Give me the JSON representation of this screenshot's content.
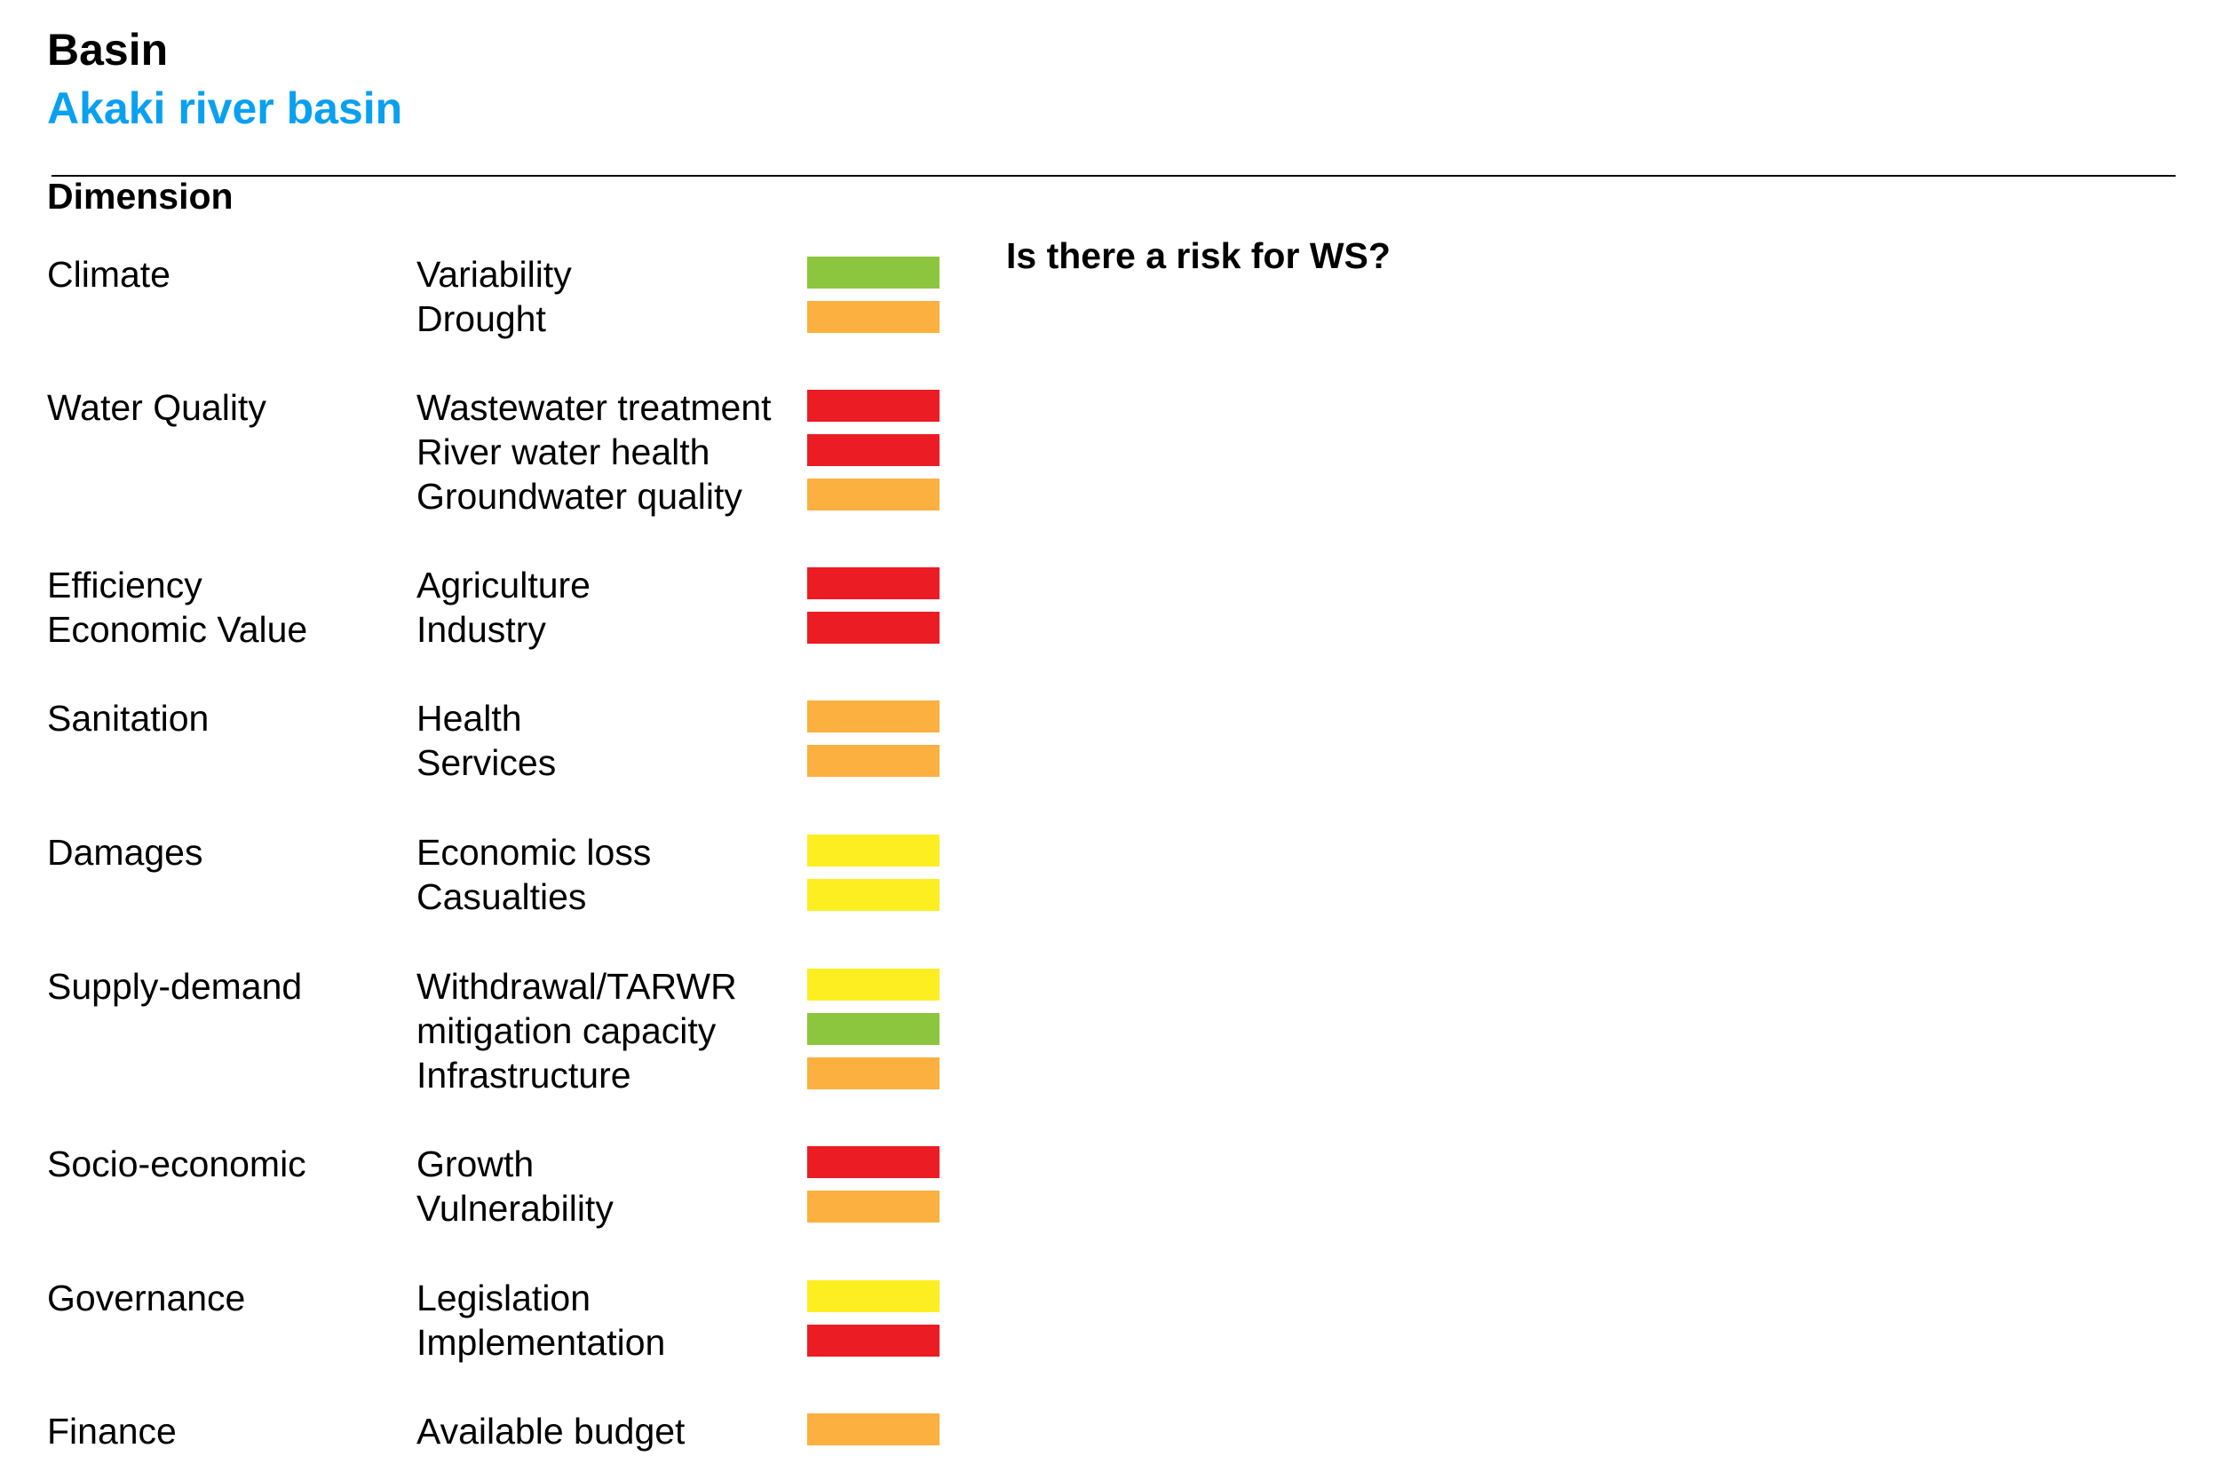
{
  "header": {
    "title": "Basin",
    "subtitle": "Akaki river basin",
    "dimension_label": "Dimension",
    "question": "Is there a risk for WS?"
  },
  "colors": {
    "accent": "#0aa0f0",
    "low": "#8cc63f",
    "moderate": "#fcee21",
    "high": "#fbb040",
    "very_high": "#ec1c24"
  },
  "rows": [
    {
      "dimension": "Climate",
      "indicator": "Variability",
      "risk": "low"
    },
    {
      "dimension": "",
      "indicator": "Drought",
      "risk": "high"
    },
    {
      "dimension": "Water Quality",
      "indicator": "Wastewater treatment",
      "risk": "very_high"
    },
    {
      "dimension": "",
      "indicator": "River water health",
      "risk": "very_high"
    },
    {
      "dimension": "",
      "indicator": "Groundwater quality",
      "risk": "high"
    },
    {
      "dimension": "Efficiency",
      "indicator": "Agriculture",
      "risk": "very_high"
    },
    {
      "dimension": "Economic Value",
      "indicator": "Industry",
      "risk": "very_high"
    },
    {
      "dimension": "Sanitation",
      "indicator": "Health",
      "risk": "high"
    },
    {
      "dimension": "",
      "indicator": "Services",
      "risk": "high"
    },
    {
      "dimension": "Damages",
      "indicator": "Economic loss",
      "risk": "moderate"
    },
    {
      "dimension": "",
      "indicator": "Casualties",
      "risk": "moderate"
    },
    {
      "dimension": "Supply-demand",
      "indicator": "Withdrawal/TARWR",
      "risk": "moderate"
    },
    {
      "dimension": "",
      "indicator": "mitigation capacity",
      "risk": "low"
    },
    {
      "dimension": "",
      "indicator": "Infrastructure",
      "risk": "high"
    },
    {
      "dimension": "Socio-economic",
      "indicator": "Growth",
      "risk": "very_high"
    },
    {
      "dimension": "",
      "indicator": "Vulnerability",
      "risk": "high"
    },
    {
      "dimension": "Governance",
      "indicator": "Legislation",
      "risk": "moderate"
    },
    {
      "dimension": "",
      "indicator": "Implementation",
      "risk": "very_high"
    },
    {
      "dimension": "Finance",
      "indicator": "Available budget",
      "risk": "high"
    }
  ]
}
